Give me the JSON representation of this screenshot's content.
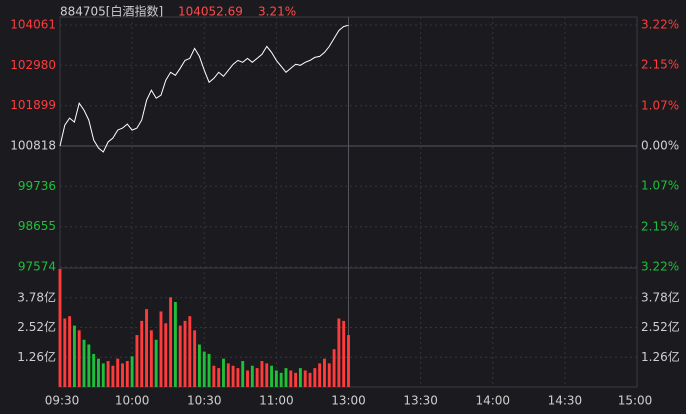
{
  "chart_data": {
    "type": "line",
    "title": "884705[白酒指数]",
    "last_price": 104052.69,
    "change": {
      "value": 3.21,
      "label": "3.21%"
    },
    "x": [
      0,
      2,
      4,
      6,
      8,
      10,
      12,
      14,
      16,
      18,
      20,
      22,
      24,
      26,
      28,
      30,
      32,
      34,
      36,
      38,
      40,
      42,
      44,
      46,
      48,
      50,
      52,
      54,
      56,
      58,
      60,
      62,
      64,
      66,
      68,
      70,
      72,
      74,
      76,
      78,
      80,
      82,
      84,
      86,
      88,
      90,
      92,
      94,
      96,
      98,
      100,
      102,
      104,
      106,
      108,
      110,
      112,
      114,
      116,
      118,
      120
    ],
    "series": [
      {
        "color": "#ffffff",
        "values": [
          100818,
          101379,
          101565,
          101459,
          101966,
          101779,
          101512,
          100978,
          100765,
          100658,
          100925,
          101032,
          101245,
          101298,
          101405,
          101245,
          101298,
          101512,
          102046,
          102313,
          102099,
          102179,
          102580,
          102793,
          102713,
          102900,
          103113,
          103167,
          103434,
          103220,
          102846,
          102526,
          102633,
          102793,
          102686,
          102846,
          103007,
          103113,
          103060,
          103167,
          103060,
          103167,
          103273,
          103487,
          103327,
          103113,
          102953,
          102793,
          102900,
          103007,
          102980,
          103060,
          103113,
          103193,
          103220,
          103327,
          103487,
          103701,
          103914,
          104021,
          104053
        ]
      }
    ],
    "xlim": [
      0,
      240
    ],
    "xticks": [
      {
        "value": 0,
        "label": "09:30"
      },
      {
        "value": 30,
        "label": "10:00"
      },
      {
        "value": 60,
        "label": "10:30"
      },
      {
        "value": 90,
        "label": "11:00"
      },
      {
        "value": 120,
        "label": "13:00"
      },
      {
        "value": 150,
        "label": "13:30"
      },
      {
        "value": 180,
        "label": "14:00"
      },
      {
        "value": 210,
        "label": "14:30"
      },
      {
        "value": 240,
        "label": "15:00"
      }
    ],
    "ylim": [
      97574,
      104061
    ],
    "yticks": [
      104061,
      102980,
      101899,
      100818,
      99736,
      98655,
      97574
    ],
    "y2lim": [
      -3.22,
      3.22
    ],
    "y2ticks": [
      {
        "value": 3.22,
        "label": "3.22%"
      },
      {
        "value": 2.15,
        "label": "2.15%"
      },
      {
        "value": 1.07,
        "label": "1.07%"
      },
      {
        "value": 0,
        "label": "0.00%"
      },
      {
        "value": -1.07,
        "label": "1.07%"
      },
      {
        "value": -2.15,
        "label": "2.15%"
      },
      {
        "value": -3.22,
        "label": "3.22%"
      }
    ],
    "up_color": "#ff3b3b",
    "down_color": "#1fbf3a",
    "grid": true,
    "volume": {
      "values": [
        5.0,
        2.9,
        3.0,
        2.6,
        2.4,
        2.0,
        1.8,
        1.4,
        1.2,
        1.0,
        1.1,
        0.9,
        1.2,
        1.0,
        1.1,
        1.3,
        2.2,
        2.8,
        3.3,
        2.4,
        2.0,
        3.2,
        2.7,
        3.8,
        3.6,
        2.6,
        2.8,
        3.0,
        2.4,
        1.8,
        1.5,
        1.4,
        0.9,
        0.8,
        1.2,
        1.0,
        0.9,
        0.8,
        1.1,
        0.7,
        0.9,
        0.8,
        1.1,
        1.0,
        0.9,
        0.7,
        0.6,
        0.8,
        0.7,
        0.6,
        0.8,
        0.7,
        0.6,
        0.8,
        1.0,
        1.2,
        1.0,
        1.6,
        2.9,
        2.8,
        2.2
      ],
      "ylim": [
        0,
        5.04
      ],
      "yticks": [
        {
          "value": 3.78,
          "label": "3.78亿"
        },
        {
          "value": 2.52,
          "label": "2.52亿"
        },
        {
          "value": 1.26,
          "label": "1.26亿"
        }
      ]
    }
  }
}
